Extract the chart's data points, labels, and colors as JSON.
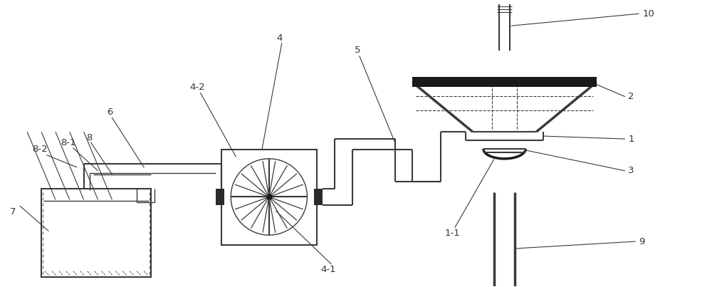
{
  "bg_color": "#ffffff",
  "line_color": "#3a3a3a",
  "label_color": "#333333",
  "fig_width": 10.0,
  "fig_height": 4.03,
  "dpi": 100
}
